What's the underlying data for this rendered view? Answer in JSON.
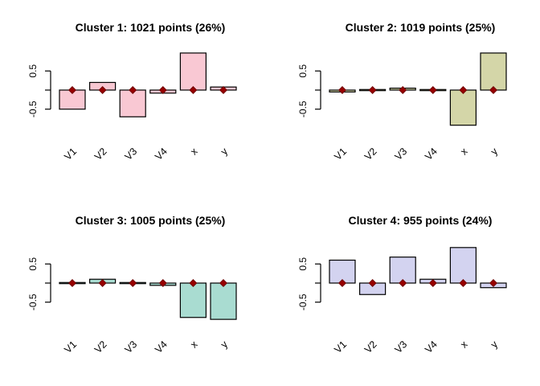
{
  "window": {
    "background": "#FFFFFF",
    "foreground": "#000000"
  },
  "axis": {
    "ytick_labels": [
      "0.5",
      "-0.5"
    ],
    "ytick_label_values": [
      0.5,
      -0.5
    ],
    "ytick_mark_values": [
      0.5,
      0,
      -0.5
    ],
    "ylim": [
      -1.05,
      1.05
    ],
    "grid": "off"
  },
  "marker": {
    "shape": "diamond-icon",
    "color": "#990000",
    "stroke": "#6E0000",
    "value": 0
  },
  "chart_data": [
    {
      "type": "bar",
      "title": "Cluster 1: 1021 points (26%)",
      "categories": [
        "V1",
        "V2",
        "V3",
        "V4",
        "x",
        "y"
      ],
      "values": [
        -0.5,
        0.2,
        -0.7,
        -0.08,
        0.97,
        0.08
      ],
      "bar_fill": "#F9C8D3",
      "bar_stroke": "#000000",
      "marker_value": 0
    },
    {
      "type": "bar",
      "title": "Cluster 2: 1019 points (25%)",
      "categories": [
        "V1",
        "V2",
        "V3",
        "V4",
        "x",
        "y"
      ],
      "values": [
        -0.05,
        0,
        0.05,
        0,
        -0.92,
        0.97
      ],
      "bar_fill": "#D4D6A8",
      "bar_stroke": "#000000",
      "marker_value": 0
    },
    {
      "type": "bar",
      "title": "Cluster 3: 1005 points (25%)",
      "categories": [
        "V1",
        "V2",
        "V3",
        "V4",
        "x",
        "y"
      ],
      "values": [
        0,
        0.1,
        0,
        -0.06,
        -0.9,
        -0.95
      ],
      "bar_fill": "#A9DCD1",
      "bar_stroke": "#000000",
      "marker_value": 0
    },
    {
      "type": "bar",
      "title": "Cluster 4: 955 points (24%)",
      "categories": [
        "V1",
        "V2",
        "V3",
        "V4",
        "x",
        "y"
      ],
      "values": [
        0.6,
        -0.3,
        0.68,
        0.1,
        0.93,
        -0.12
      ],
      "bar_fill": "#D3D3F0",
      "bar_stroke": "#000000",
      "marker_value": 0
    }
  ]
}
